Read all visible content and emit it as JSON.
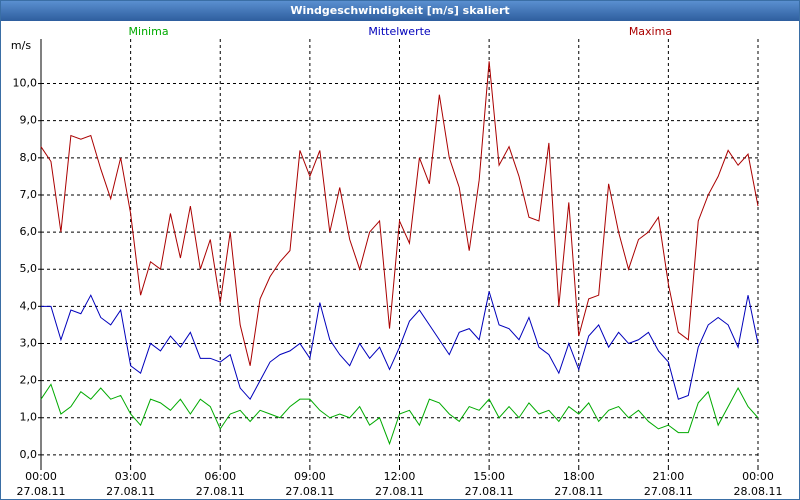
{
  "chart_data": {
    "type": "line",
    "title": "Windgeschwindigkeit [m/s] skaliert",
    "y_label": "m/s",
    "grid": true,
    "x": [
      0,
      20,
      40,
      60,
      80,
      100,
      120,
      140,
      160,
      180,
      200,
      220,
      240,
      260,
      280,
      300,
      320,
      340,
      360,
      380,
      400,
      420,
      440,
      460,
      480,
      500,
      520,
      540,
      560,
      580,
      600,
      620,
      640,
      660,
      680,
      700,
      720,
      740,
      760,
      780,
      800,
      820,
      840,
      860,
      880,
      900,
      920,
      940,
      960,
      980,
      1000,
      1020,
      1040,
      1060,
      1080,
      1100,
      1120,
      1140,
      1160,
      1180,
      1200,
      1220,
      1240,
      1260,
      1280,
      1300,
      1320,
      1340,
      1360,
      1380,
      1400,
      1420,
      1440
    ],
    "xlim": [
      0,
      1440
    ],
    "xticks": [
      {
        "value": 0,
        "label": "00:00\n27.08.11"
      },
      {
        "value": 180,
        "label": "03:00\n27.08.11"
      },
      {
        "value": 360,
        "label": "06:00\n27.08.11"
      },
      {
        "value": 540,
        "label": "09:00\n27.08.11"
      },
      {
        "value": 720,
        "label": "12:00\n27.08.11"
      },
      {
        "value": 900,
        "label": "15:00\n27.08.11"
      },
      {
        "value": 1080,
        "label": "18:00\n27.08.11"
      },
      {
        "value": 1260,
        "label": "21:00\n27.08.11"
      },
      {
        "value": 1440,
        "label": "00:00\n28.08.11"
      }
    ],
    "ylim": [
      -0.3,
      11.2
    ],
    "yticks": [
      {
        "value": 0,
        "label": "0,0"
      },
      {
        "value": 1,
        "label": "1,0"
      },
      {
        "value": 2,
        "label": "2,0"
      },
      {
        "value": 3,
        "label": "3,0"
      },
      {
        "value": 4,
        "label": "4,0"
      },
      {
        "value": 5,
        "label": "5,0"
      },
      {
        "value": 6,
        "label": "6,0"
      },
      {
        "value": 7,
        "label": "7,0"
      },
      {
        "value": 8,
        "label": "8,0"
      },
      {
        "value": 9,
        "label": "9,0"
      },
      {
        "value": 10,
        "label": "10,0"
      }
    ],
    "series": [
      {
        "name": "Minima",
        "color": "#00aa00",
        "values": [
          1.5,
          1.9,
          1.1,
          1.3,
          1.7,
          1.5,
          1.8,
          1.5,
          1.6,
          1.1,
          0.8,
          1.5,
          1.4,
          1.2,
          1.5,
          1.1,
          1.5,
          1.3,
          0.7,
          1.1,
          1.2,
          0.9,
          1.2,
          1.1,
          1.0,
          1.3,
          1.5,
          1.5,
          1.2,
          1.0,
          1.1,
          1.0,
          1.3,
          0.8,
          1.0,
          0.3,
          1.1,
          1.2,
          0.8,
          1.5,
          1.4,
          1.1,
          0.9,
          1.3,
          1.2,
          1.5,
          1.0,
          1.3,
          1.0,
          1.4,
          1.1,
          1.2,
          0.9,
          1.3,
          1.1,
          1.4,
          0.9,
          1.2,
          1.3,
          1.0,
          1.2,
          0.9,
          0.7,
          0.8,
          0.6,
          0.6,
          1.4,
          1.7,
          0.8,
          1.3,
          1.8,
          1.3,
          1.0
        ]
      },
      {
        "name": "Mittelwerte",
        "color": "#0000bb",
        "values": [
          4.0,
          4.0,
          3.1,
          3.9,
          3.8,
          4.3,
          3.7,
          3.5,
          3.9,
          2.4,
          2.2,
          3.0,
          2.8,
          3.2,
          2.9,
          3.3,
          2.6,
          2.6,
          2.5,
          2.7,
          1.8,
          1.5,
          2.0,
          2.5,
          2.7,
          2.8,
          3.0,
          2.6,
          4.1,
          3.1,
          2.7,
          2.4,
          3.0,
          2.6,
          2.9,
          2.3,
          2.9,
          3.6,
          3.9,
          3.5,
          3.1,
          2.7,
          3.3,
          3.4,
          3.1,
          4.4,
          3.5,
          3.4,
          3.1,
          3.7,
          2.9,
          2.7,
          2.2,
          3.0,
          2.3,
          3.2,
          3.5,
          2.9,
          3.3,
          3.0,
          3.1,
          3.3,
          2.8,
          2.5,
          1.5,
          1.6,
          2.9,
          3.5,
          3.7,
          3.5,
          2.9,
          4.3,
          3.0
        ]
      },
      {
        "name": "Maxima",
        "color": "#aa0000",
        "values": [
          8.3,
          7.9,
          6.0,
          8.6,
          8.5,
          8.6,
          7.7,
          6.9,
          8.0,
          6.5,
          4.3,
          5.2,
          5.0,
          6.5,
          5.3,
          6.7,
          5.0,
          5.8,
          4.1,
          6.0,
          3.5,
          2.4,
          4.2,
          4.8,
          5.2,
          5.5,
          8.2,
          7.5,
          8.2,
          6.0,
          7.2,
          5.8,
          5.0,
          6.0,
          6.3,
          3.4,
          6.3,
          5.7,
          8.0,
          7.3,
          9.7,
          8.0,
          7.2,
          5.5,
          7.4,
          10.6,
          7.8,
          8.3,
          7.5,
          6.4,
          6.3,
          8.4,
          4.0,
          6.8,
          3.2,
          4.2,
          4.3,
          7.3,
          6.0,
          5.0,
          5.8,
          6.0,
          6.4,
          4.6,
          3.3,
          3.1,
          6.3,
          7.0,
          7.5,
          8.2,
          7.8,
          8.1,
          6.7
        ]
      }
    ]
  }
}
